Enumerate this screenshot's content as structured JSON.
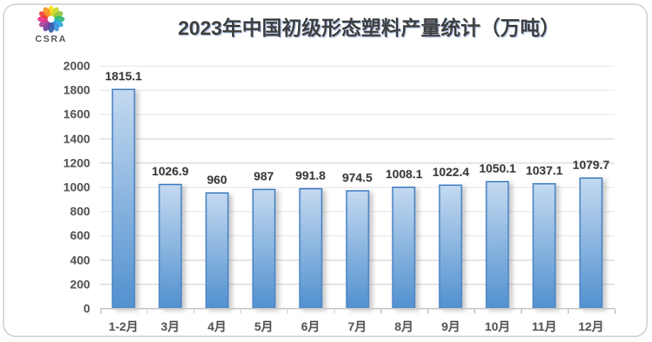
{
  "logo": {
    "text": "CSRA",
    "petal_colors": [
      "#F7E017",
      "#C5D92D",
      "#8DC63F",
      "#2BB673",
      "#27AAE1",
      "#3E8EDE",
      "#2A5CAA",
      "#6A3FA0",
      "#A54399",
      "#E6318A",
      "#EE4035",
      "#F7941E"
    ]
  },
  "chart_data": {
    "type": "bar",
    "title": "2023年中国初级形态塑料产量统计（万吨）",
    "categories": [
      "1-2月",
      "3月",
      "4月",
      "5月",
      "6月",
      "7月",
      "8月",
      "9月",
      "10月",
      "11月",
      "12月"
    ],
    "values": [
      1815.1,
      1026.9,
      960,
      987,
      991.8,
      974.5,
      1008.1,
      1022.4,
      1050.1,
      1037.1,
      1079.7
    ],
    "data_labels": [
      "1815.1",
      "1026.9",
      "960",
      "987",
      "991.8",
      "974.5",
      "1008.1",
      "1022.4",
      "1050.1",
      "1037.1",
      "1079.7"
    ],
    "xlabel": "",
    "ylabel": "",
    "ylim": [
      0,
      2000
    ],
    "ytick_interval": 200,
    "grid": true,
    "legend": false,
    "bar_color_top": "#C3D9F0",
    "bar_color_bottom": "#5291CF",
    "bar_border_color": "#4E86C6",
    "gridline_color": "#E0E0E0",
    "axis_label_color": "#595959",
    "data_label_color": "#3D3D3D"
  }
}
